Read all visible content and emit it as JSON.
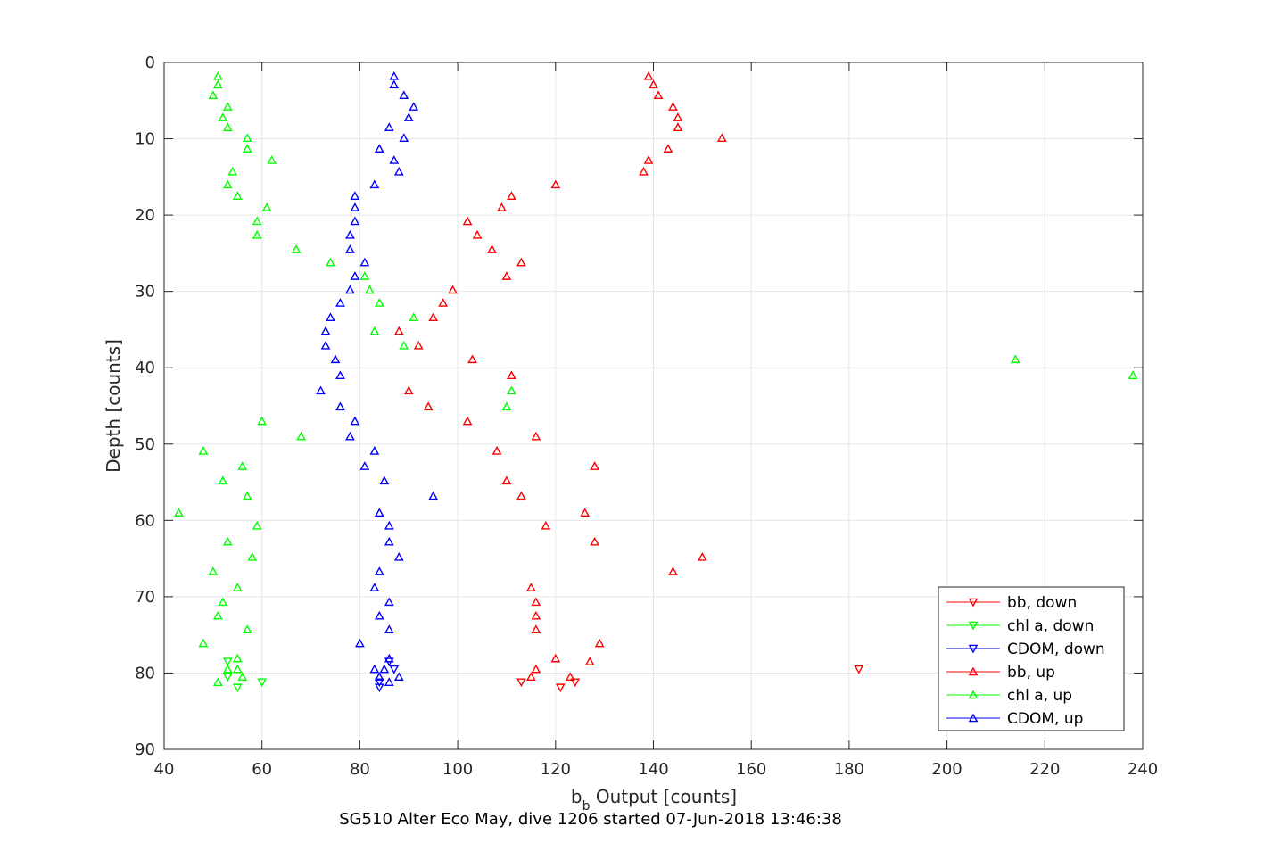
{
  "chart_data": {
    "type": "scatter",
    "xlabel_main": "b",
    "xlabel_sub": "b",
    "xlabel_rest": " Output [counts]",
    "ylabel": "Depth [counts]",
    "caption": "SG510 Alter Eco May, dive 1206 started 07-Jun-2018 13:46:38",
    "xlim": [
      40,
      240
    ],
    "ylim": [
      0,
      90
    ],
    "y_reversed": true,
    "grid": true,
    "legend_position": "bottom-right",
    "x_ticks": [
      40,
      60,
      80,
      100,
      120,
      140,
      160,
      180,
      200,
      220,
      240
    ],
    "y_ticks": [
      0,
      10,
      20,
      30,
      40,
      50,
      60,
      70,
      80,
      90
    ],
    "series": [
      {
        "name": "bb, down",
        "color": "#ff0000",
        "marker": "triangle-down",
        "x": [
          113,
          121,
          124,
          182
        ],
        "y": [
          81.2,
          81.9,
          81.2,
          79.5
        ]
      },
      {
        "name": "chl a, down",
        "color": "#00ff00",
        "marker": "triangle-down",
        "x": [
          53,
          53,
          55,
          60
        ],
        "y": [
          78.5,
          80.5,
          81.9,
          81.2
        ]
      },
      {
        "name": "CDOM, down",
        "color": "#0000ff",
        "marker": "triangle-down",
        "x": [
          84,
          84,
          86,
          87
        ],
        "y": [
          81.2,
          81.9,
          78.5,
          79.5
        ]
      },
      {
        "name": "bb, up",
        "color": "#ff0000",
        "marker": "triangle-up",
        "x": [
          139,
          140,
          141,
          144,
          145,
          145,
          154,
          143,
          139,
          138,
          120,
          111,
          109,
          102,
          104,
          107,
          113,
          110,
          99,
          97,
          95,
          88,
          92,
          103,
          111,
          90,
          94,
          102,
          116,
          108,
          128,
          110,
          113,
          126,
          118,
          128,
          150,
          144,
          115,
          116,
          116,
          116,
          129,
          120,
          127,
          116,
          115,
          123
        ],
        "y": [
          1.8,
          2.9,
          4.3,
          5.8,
          7.2,
          8.5,
          9.9,
          11.3,
          12.8,
          14.3,
          16.0,
          17.5,
          19.0,
          20.8,
          22.6,
          24.5,
          26.2,
          28.0,
          29.8,
          31.5,
          33.4,
          35.2,
          37.1,
          38.9,
          41.0,
          43.0,
          45.1,
          47.0,
          49.0,
          50.9,
          52.9,
          54.8,
          56.8,
          59.0,
          60.7,
          62.8,
          64.8,
          66.7,
          68.8,
          70.7,
          72.5,
          74.3,
          76.1,
          78.1,
          78.5,
          79.5,
          80.5,
          80.5
        ]
      },
      {
        "name": "chl a, up",
        "color": "#00ff00",
        "marker": "triangle-up",
        "x": [
          51,
          51,
          50,
          53,
          52,
          53,
          57,
          57,
          62,
          54,
          53,
          55,
          61,
          59,
          59,
          67,
          74,
          81,
          82,
          84,
          91,
          83,
          89,
          214,
          238,
          111,
          110,
          60,
          68,
          48,
          56,
          52,
          57,
          43,
          59,
          53,
          58,
          50,
          55,
          52,
          51,
          57,
          48,
          55,
          53,
          55,
          56,
          51
        ],
        "y": [
          1.8,
          2.9,
          4.3,
          5.8,
          7.2,
          8.5,
          9.9,
          11.3,
          12.8,
          14.3,
          16.0,
          17.5,
          19.0,
          20.8,
          22.6,
          24.5,
          26.2,
          28.0,
          29.8,
          31.5,
          33.4,
          35.2,
          37.1,
          38.9,
          41.0,
          43.0,
          45.1,
          47.0,
          49.0,
          50.9,
          52.9,
          54.8,
          56.8,
          59.0,
          60.7,
          62.8,
          64.8,
          66.7,
          68.8,
          70.7,
          72.5,
          74.3,
          76.1,
          78.1,
          79.5,
          79.5,
          80.5,
          81.2
        ]
      },
      {
        "name": "CDOM, up",
        "color": "#0000ff",
        "marker": "triangle-up",
        "x": [
          87,
          87,
          89,
          91,
          90,
          86,
          89,
          84,
          87,
          88,
          83,
          79,
          79,
          79,
          78,
          78,
          81,
          79,
          78,
          76,
          74,
          73,
          73,
          75,
          76,
          72,
          76,
          79,
          78,
          83,
          81,
          85,
          95,
          84,
          86,
          86,
          88,
          84,
          83,
          86,
          84,
          86,
          80,
          86,
          85,
          83,
          84,
          88,
          86
        ],
        "y": [
          1.8,
          2.9,
          4.3,
          5.8,
          7.2,
          8.5,
          9.9,
          11.3,
          12.8,
          14.3,
          16.0,
          17.5,
          19.0,
          20.8,
          22.6,
          24.5,
          26.2,
          28.0,
          29.8,
          31.5,
          33.4,
          35.2,
          37.1,
          38.9,
          41.0,
          43.0,
          45.1,
          47.0,
          49.0,
          50.9,
          52.9,
          54.8,
          56.8,
          59.0,
          60.7,
          62.8,
          64.8,
          66.7,
          68.8,
          70.7,
          72.5,
          74.3,
          76.1,
          78.1,
          79.5,
          79.5,
          80.5,
          80.5,
          81.2
        ]
      }
    ]
  }
}
